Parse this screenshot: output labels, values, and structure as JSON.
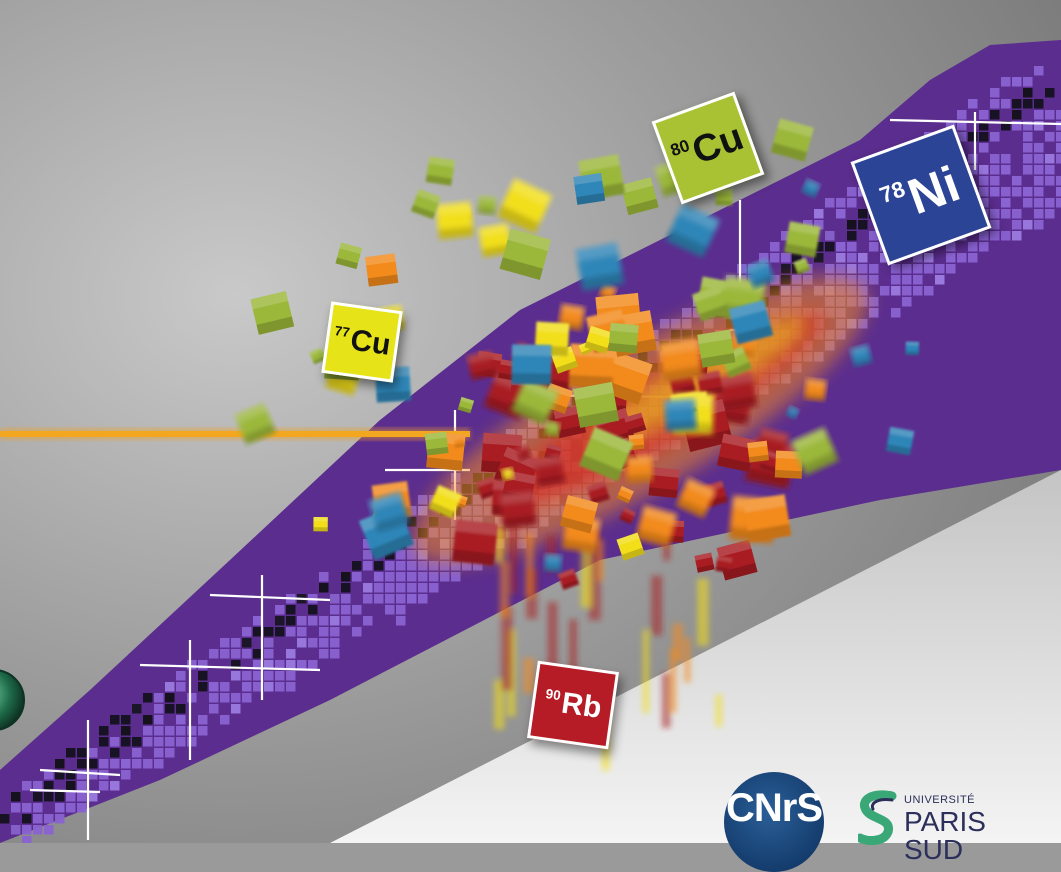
{
  "tiles": {
    "cu80": {
      "mass": "80",
      "symbol": "Cu"
    },
    "ni78": {
      "mass": "78",
      "symbol": "Ni"
    },
    "cu77": {
      "mass": "77",
      "symbol": "Cu"
    },
    "rb90": {
      "mass": "90",
      "symbol": "Rb"
    }
  },
  "logos": {
    "cnrs": "CNrS",
    "university_label": "UNIVERSITÉ",
    "university_name": "PARIS",
    "university_sub": "SUD"
  },
  "colors": {
    "band_purple": "#5b2d8e",
    "cell_lavender": "#8a63d2",
    "beam_orange": "#f0a020",
    "fragment_red": "#a81c22",
    "fragment_orange": "#f28a1c",
    "fragment_yellow": "#f2df1a",
    "fragment_green": "#9bb83a",
    "fragment_blue": "#2f86b8",
    "logo_navy": "#153d6e"
  }
}
